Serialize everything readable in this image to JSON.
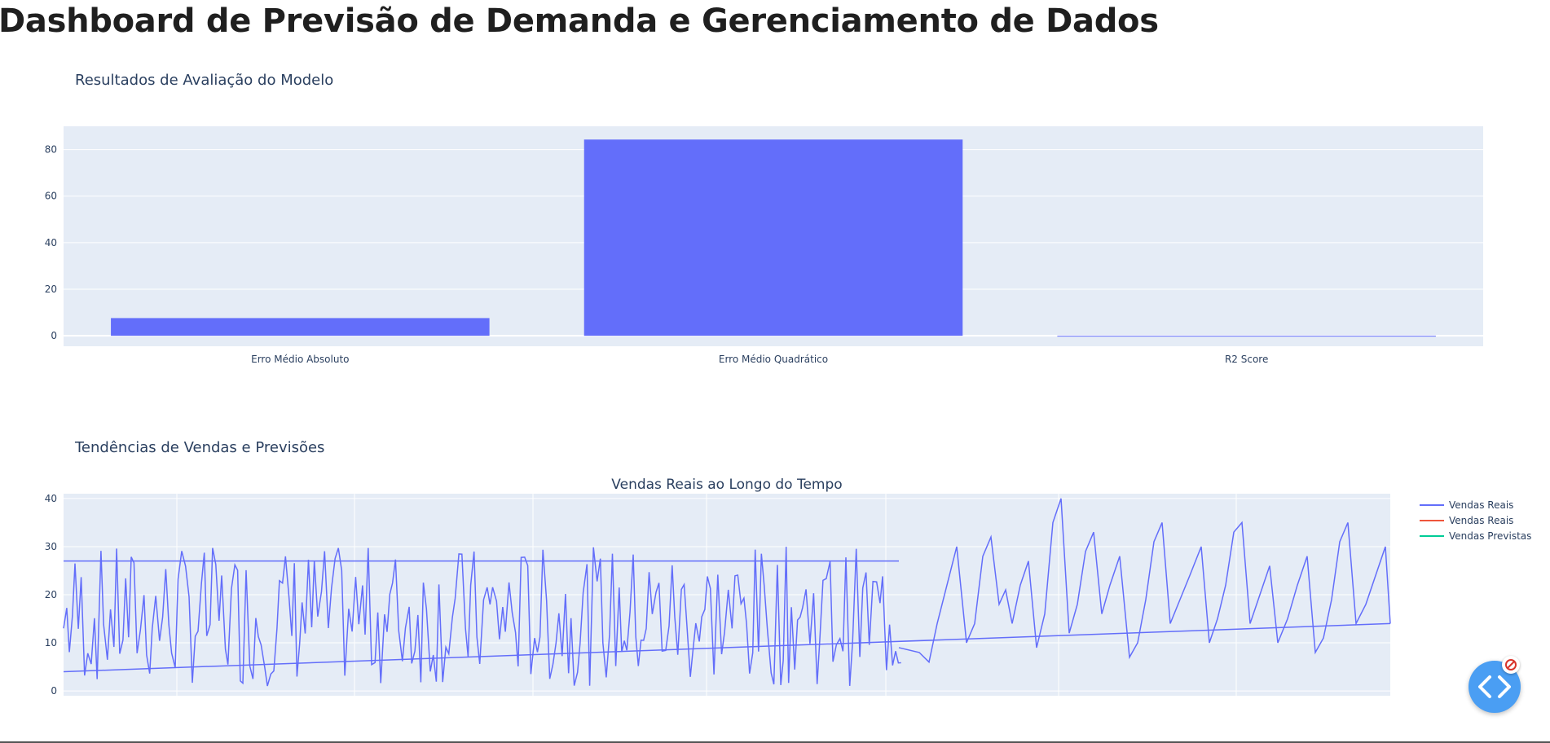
{
  "page": {
    "title": "Dashboard de Previsão de Demanda e Gerenciamento de Dados"
  },
  "sections": {
    "evaluation_title": "Resultados de Avaliação do Modelo",
    "trends_title": "Tendências de Vendas e Previsões"
  },
  "colors": {
    "plot_bg": "#e5ecf6",
    "series_blue": "#636efa",
    "series_red": "#ef553b",
    "series_green": "#00cc96",
    "fab": "#4a9ef3"
  },
  "icons": {
    "fab": "code-brackets-icon",
    "badge": "no-entry-icon"
  },
  "chart_data": [
    {
      "type": "bar",
      "categories": [
        "Erro Médio Absoluto",
        "Erro Médio Quadrático",
        "R2 Score"
      ],
      "values": [
        7.6,
        84.3,
        -0.2
      ],
      "ylim": [
        -4.5,
        90
      ],
      "yticks": [
        0,
        20,
        40,
        60,
        80
      ],
      "grid": true
    },
    {
      "type": "line",
      "title": "Vendas Reais ao Longo do Tempo",
      "ylim": [
        -1,
        41
      ],
      "yticks": [
        0,
        10,
        20,
        30,
        40
      ],
      "grid": true,
      "legend_position": "right",
      "series": [
        {
          "name": "Vendas Reais",
          "color": "#636efa"
        },
        {
          "name": "Vendas Reais",
          "color": "#ef553b"
        },
        {
          "name": "Vendas Previstas",
          "color": "#00cc96"
        }
      ]
    }
  ]
}
